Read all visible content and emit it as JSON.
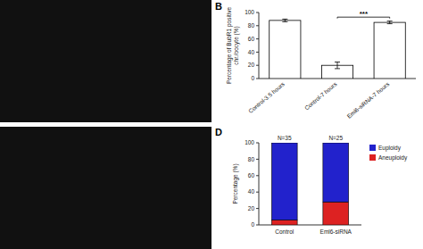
{
  "chart_data": [
    {
      "type": "bar",
      "title": "B",
      "categories": [
        "Control-3.5 hours",
        "Control-7 hours",
        "Eml6-siRNA-7 hours"
      ],
      "values": [
        88,
        20,
        85
      ],
      "errors": [
        2,
        5,
        2
      ],
      "color": "#ffffff",
      "ylabel": "Percentage of BubR1 positive\nchr./oocyte (%)",
      "ylim": [
        0,
        100
      ],
      "yticks": [
        0,
        20,
        40,
        60,
        80,
        100
      ],
      "annotations": [
        {
          "text": "***",
          "x1": 1,
          "x2": 2,
          "y": 91,
          "height": 2
        }
      ]
    },
    {
      "type": "bar",
      "stacked": true,
      "title": "D",
      "categories": [
        "Control",
        "Eml6-siRNA"
      ],
      "series": [
        {
          "name": "Aneuploidy",
          "color": "#dd2222",
          "values": [
            6,
            28
          ]
        },
        {
          "name": "Euploidy",
          "color": "#2222cc",
          "values": [
            94,
            72
          ]
        }
      ],
      "ylabel": "Percentage (%)",
      "ylim": [
        0,
        100
      ],
      "yticks": [
        0,
        20,
        40,
        60,
        80,
        100
      ],
      "legend": "upper right",
      "annotations": [
        {
          "text": "N=35",
          "x": 0
        },
        {
          "text": "N=25",
          "x": 1
        }
      ]
    }
  ]
}
